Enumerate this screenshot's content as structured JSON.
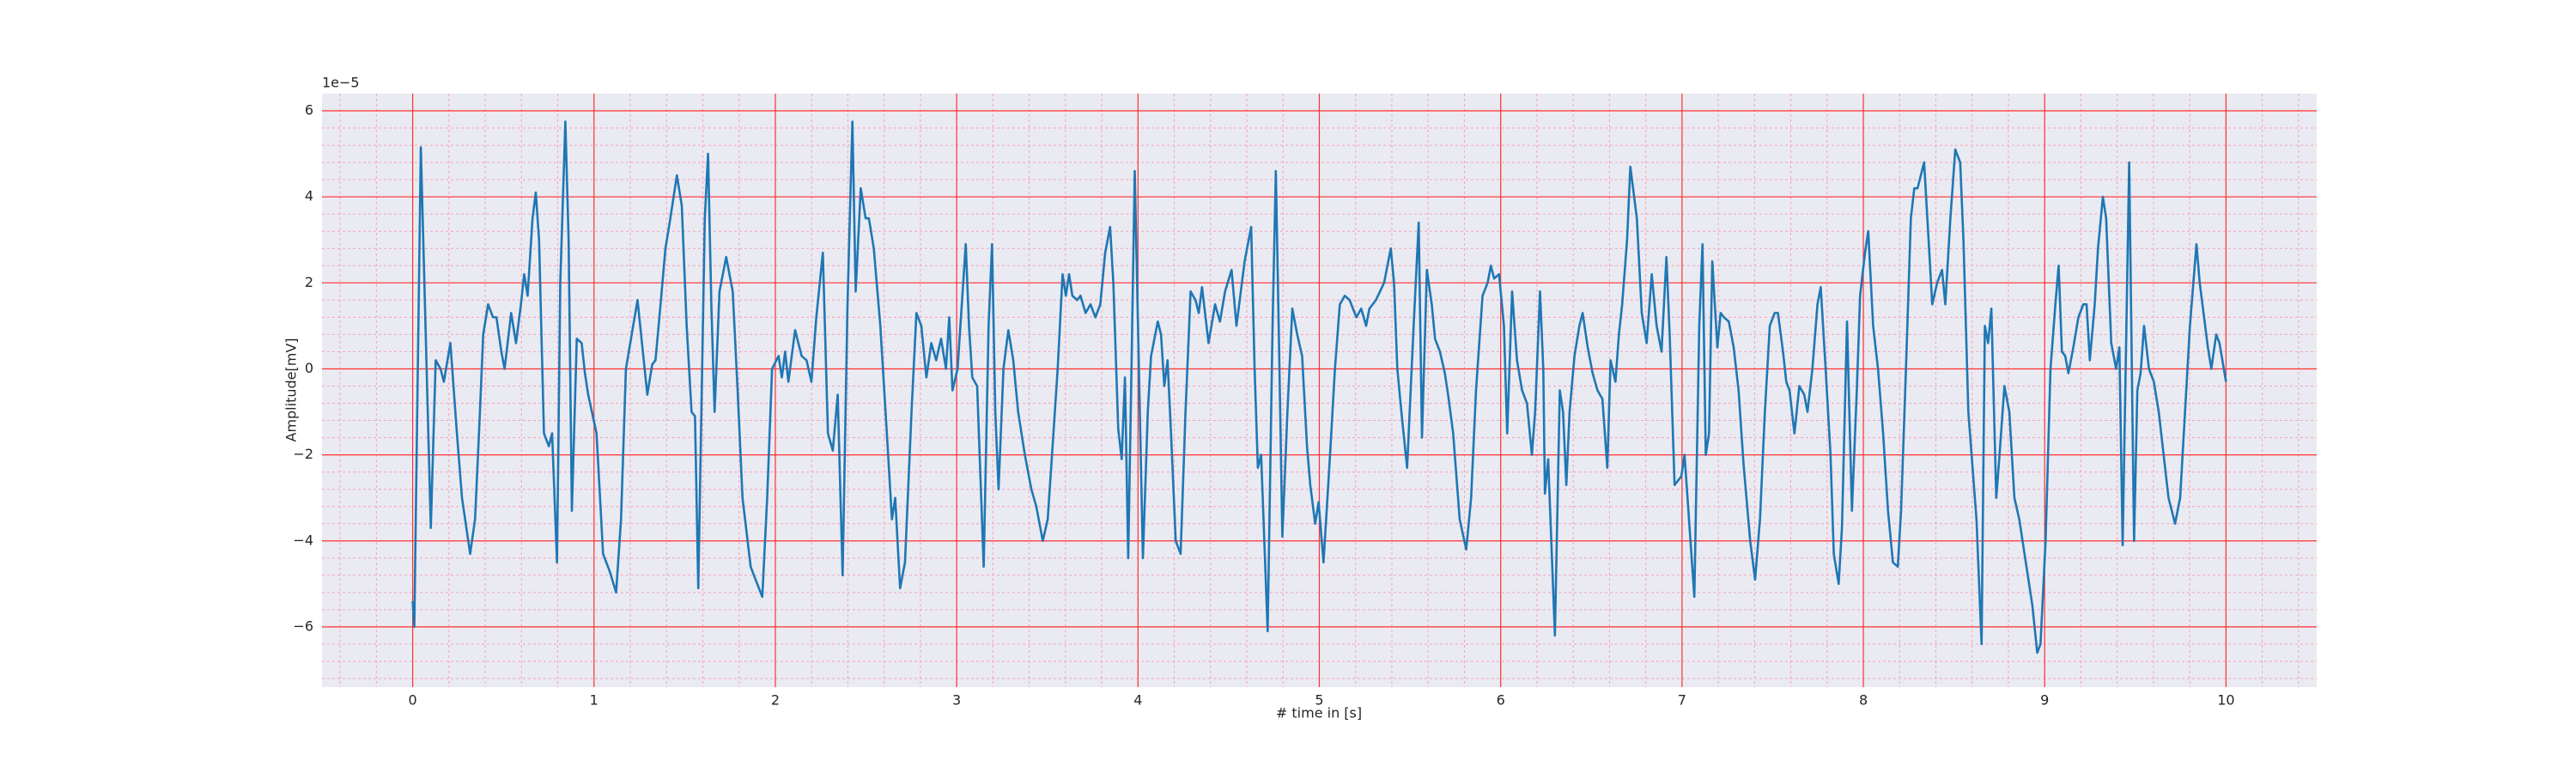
{
  "chart_data": {
    "type": "line",
    "xlabel": "# time in [s]",
    "ylabel": "Amplitude[mV]",
    "y_offset_label": "1e−5",
    "color": "#1f77b4",
    "grid": true,
    "xlim": [
      -0.5,
      10.5
    ],
    "ylim": [
      -7.4,
      6.4
    ],
    "xticks": [
      0,
      1,
      2,
      3,
      4,
      5,
      6,
      7,
      8,
      9,
      10
    ],
    "yticks": [
      {
        "value": -6,
        "label": "−6"
      },
      {
        "value": -4,
        "label": "−4"
      },
      {
        "value": -2,
        "label": "−2"
      },
      0,
      2,
      4,
      6
    ],
    "x_minor_ticks": [
      -0.4,
      -0.2,
      0.2,
      0.4,
      0.6,
      0.8,
      1.2,
      1.4,
      1.6,
      1.8,
      2.2,
      2.4,
      2.6,
      2.8,
      3.2,
      3.4,
      3.6,
      3.8,
      4.2,
      4.4,
      4.6,
      4.8,
      5.2,
      5.4,
      5.6,
      5.8,
      6.2,
      6.4,
      6.6,
      6.8,
      7.2,
      7.4,
      7.6,
      7.8,
      8.2,
      8.4,
      8.6,
      8.8,
      9.2,
      9.4,
      9.6,
      9.8,
      10.2,
      10.4
    ],
    "y_minor_ticks": [
      -7.2,
      -6.8,
      -6.4,
      -5.6,
      -5.2,
      -4.8,
      -4.4,
      -3.6,
      -3.2,
      -2.8,
      -2.4,
      -1.6,
      -1.2,
      -0.8,
      -0.4,
      0.4,
      0.8,
      1.2,
      1.6,
      2.4,
      2.8,
      3.2,
      3.6,
      4.4,
      4.8,
      5.2,
      5.6
    ],
    "x": [
      0.0,
      0.009,
      0.045,
      0.1,
      0.127,
      0.154,
      0.172,
      0.208,
      0.244,
      0.272,
      0.317,
      0.344,
      0.371,
      0.389,
      0.416,
      0.443,
      0.462,
      0.489,
      0.507,
      0.543,
      0.57,
      0.597,
      0.615,
      0.634,
      0.661,
      0.679,
      0.697,
      0.724,
      0.751,
      0.769,
      0.796,
      0.814,
      0.842,
      0.86,
      0.878,
      0.905,
      0.932,
      0.95,
      0.968,
      1.014,
      1.05,
      1.086,
      1.122,
      1.149,
      1.176,
      1.204,
      1.24,
      1.267,
      1.294,
      1.321,
      1.339,
      1.367,
      1.394,
      1.421,
      1.457,
      1.484,
      1.511,
      1.538,
      1.557,
      1.575,
      1.611,
      1.629,
      1.647,
      1.665,
      1.692,
      1.729,
      1.765,
      1.792,
      1.819,
      1.864,
      1.891,
      1.928,
      1.955,
      1.982,
      2.018,
      2.036,
      2.054,
      2.072,
      2.109,
      2.145,
      2.172,
      2.199,
      2.226,
      2.262,
      2.29,
      2.317,
      2.344,
      2.371,
      2.398,
      2.425,
      2.443,
      2.471,
      2.498,
      2.516,
      2.543,
      2.579,
      2.615,
      2.643,
      2.661,
      2.688,
      2.715,
      2.751,
      2.778,
      2.805,
      2.833,
      2.86,
      2.887,
      2.914,
      2.941,
      2.959,
      2.977,
      3.005,
      3.05,
      3.068,
      3.086,
      3.113,
      3.149,
      3.176,
      3.195,
      3.213,
      3.231,
      3.258,
      3.285,
      3.312,
      3.339,
      3.376,
      3.412,
      3.439,
      3.475,
      3.502,
      3.529,
      3.557,
      3.584,
      3.602,
      3.62,
      3.638,
      3.665,
      3.683,
      3.711,
      3.738,
      3.765,
      3.792,
      3.819,
      3.846,
      3.864,
      3.891,
      3.91,
      3.928,
      3.946,
      3.964,
      3.982,
      4.0,
      4.027,
      4.054,
      4.072,
      4.109,
      4.127,
      4.145,
      4.163,
      4.181,
      4.208,
      4.235,
      4.262,
      4.29,
      4.317,
      4.335,
      4.353,
      4.389,
      4.425,
      4.452,
      4.48,
      4.516,
      4.543,
      4.588,
      4.624,
      4.643,
      4.661,
      4.679,
      4.715,
      4.742,
      4.76,
      4.778,
      4.796,
      4.824,
      4.851,
      4.878,
      4.905,
      4.932,
      4.95,
      4.977,
      4.996,
      5.023,
      5.059,
      5.086,
      5.113,
      5.14,
      5.167,
      5.204,
      5.231,
      5.258,
      5.276,
      5.312,
      5.357,
      5.394,
      5.412,
      5.43,
      5.457,
      5.484,
      5.52,
      5.548,
      5.566,
      5.593,
      5.62,
      5.638,
      5.665,
      5.692,
      5.71,
      5.738,
      5.774,
      5.81,
      5.837,
      5.864,
      5.9,
      5.928,
      5.946,
      5.964,
      5.991,
      6.018,
      6.036,
      6.063,
      6.09,
      6.118,
      6.145,
      6.172,
      6.19,
      6.217,
      6.235,
      6.244,
      6.262,
      6.299,
      6.326,
      6.344,
      6.362,
      6.38,
      6.407,
      6.434,
      6.452,
      6.48,
      6.507,
      6.534,
      6.561,
      6.588,
      6.606,
      6.633,
      6.652,
      6.67,
      6.697,
      6.715,
      6.751,
      6.778,
      6.805,
      6.833,
      6.86,
      6.887,
      6.914,
      6.932,
      6.959,
      6.996,
      7.014,
      7.068,
      7.095,
      7.113,
      7.131,
      7.149,
      7.167,
      7.195,
      7.213,
      7.231,
      7.258,
      7.285,
      7.312,
      7.339,
      7.376,
      7.403,
      7.43,
      7.457,
      7.484,
      7.511,
      7.529,
      7.557,
      7.575,
      7.593,
      7.62,
      7.647,
      7.674,
      7.692,
      7.719,
      7.747,
      7.765,
      7.792,
      7.819,
      7.837,
      7.864,
      7.882,
      7.91,
      7.937,
      7.964,
      7.982,
      8.009,
      8.027,
      8.054,
      8.081,
      8.109,
      8.136,
      8.163,
      8.19,
      8.208,
      8.235,
      8.262,
      8.281,
      8.299,
      8.317,
      8.335,
      8.353,
      8.38,
      8.407,
      8.434,
      8.452,
      8.48,
      8.507,
      8.534,
      8.552,
      8.579,
      8.597,
      8.624,
      8.652,
      8.67,
      8.688,
      8.706,
      8.733,
      8.751,
      8.778,
      8.805,
      8.833,
      8.86,
      8.896,
      8.932,
      8.959,
      8.977,
      9.005,
      9.032,
      9.059,
      9.077,
      9.095,
      9.113,
      9.131,
      9.158,
      9.186,
      9.213,
      9.231,
      9.249,
      9.276,
      9.294,
      9.321,
      9.339,
      9.367,
      9.394,
      9.412,
      9.43,
      9.466,
      9.493,
      9.511,
      9.529,
      9.548,
      9.575,
      9.602,
      9.629,
      9.656,
      9.683,
      9.719,
      9.747,
      9.774,
      9.801,
      9.837,
      9.855,
      9.873,
      9.9,
      9.919,
      9.946,
      9.964,
      10.0
    ],
    "values": [
      -5.4,
      -6.0,
      5.15,
      -3.7,
      0.2,
      0,
      -0.3,
      0.6,
      -1.5,
      -3,
      -4.3,
      -3.5,
      -1,
      0.8,
      1.5,
      1.2,
      1.2,
      0.4,
      0,
      1.3,
      0.6,
      1.5,
      2.2,
      1.7,
      3.5,
      4.1,
      3.0,
      -1.5,
      -1.8,
      -1.5,
      -4.5,
      2,
      5.75,
      3,
      -3.3,
      0.7,
      0.6,
      -0.1,
      -0.6,
      -1.5,
      -4.3,
      -4.7,
      -5.2,
      -3.5,
      0,
      0.7,
      1.6,
      0.5,
      -0.6,
      0.1,
      0.2,
      1.5,
      2.8,
      3.5,
      4.5,
      3.8,
      1,
      -1,
      -1.1,
      -5.1,
      3.5,
      5.0,
      1.5,
      -1,
      1.8,
      2.6,
      1.8,
      -0.5,
      -3,
      -4.6,
      -4.9,
      -5.3,
      -3,
      0,
      0.3,
      -0.2,
      0.4,
      -0.3,
      0.9,
      0.3,
      0.2,
      -0.3,
      1.2,
      2.7,
      -1.5,
      -1.9,
      -0.6,
      -4.8,
      1.5,
      5.75,
      1.8,
      4.2,
      3.5,
      3.5,
      2.8,
      1,
      -1.5,
      -3.5,
      -3,
      -5.1,
      -4.5,
      -1,
      1.3,
      1,
      -0.2,
      0.6,
      0.2,
      0.7,
      0,
      1.2,
      -0.5,
      0,
      2.9,
      1,
      -0.2,
      -0.4,
      -4.6,
      1,
      2.9,
      -1,
      -2.8,
      0,
      0.9,
      0.2,
      -1,
      -2,
      -2.8,
      -3.2,
      -4,
      -3.5,
      -1.8,
      0,
      2.2,
      1.7,
      2.2,
      1.7,
      1.6,
      1.7,
      1.3,
      1.5,
      1.2,
      1.5,
      2.7,
      3.3,
      2,
      -1.4,
      -2.1,
      -0.2,
      -4.4,
      0,
      4.6,
      1,
      -4.4,
      -1,
      0.3,
      1.1,
      0.8,
      -0.4,
      0.2,
      -1.4,
      -4,
      -4.3,
      -1,
      1.8,
      1.6,
      1.3,
      1.9,
      0.6,
      1.5,
      1.1,
      1.8,
      2.3,
      1,
      2.5,
      3.3,
      0,
      -2.3,
      -2,
      -6.1,
      1,
      4.6,
      0.5,
      -3.9,
      -1,
      1.4,
      0.8,
      0.3,
      -1.8,
      -2.7,
      -3.6,
      -3.1,
      -4.5,
      -2,
      0,
      1.5,
      1.7,
      1.6,
      1.2,
      1.4,
      1,
      1.4,
      1.6,
      2,
      2.8,
      2,
      0,
      -1.2,
      -2.3,
      1,
      3.4,
      -1.6,
      2.3,
      1.5,
      0.7,
      0.4,
      -0.1,
      -0.6,
      -1.5,
      -3.5,
      -4.2,
      -3,
      -0.5,
      1.7,
      2,
      2.4,
      2.1,
      2.2,
      1,
      -1.5,
      1.8,
      0.2,
      -0.5,
      -0.8,
      -2,
      -1,
      1.8,
      0,
      -2.9,
      -2.1,
      -6.2,
      -0.5,
      -1,
      -2.7,
      -1,
      0.3,
      1,
      1.3,
      0.5,
      -0.1,
      -0.5,
      -0.7,
      -2.3,
      0.2,
      -0.3,
      0.8,
      1.5,
      3,
      4.7,
      3.5,
      1.3,
      0.6,
      2.2,
      1,
      0.4,
      2.6,
      0.8,
      -2.7,
      -2.5,
      -2,
      -5.3,
      1,
      2.9,
      -2,
      -1.5,
      2.5,
      0.5,
      1.3,
      1.2,
      1.1,
      0.5,
      -0.5,
      -2.2,
      -4,
      -4.9,
      -3.5,
      -1,
      1,
      1.3,
      1.3,
      0.4,
      -0.3,
      -0.5,
      -1.5,
      -0.4,
      -0.6,
      -1,
      0,
      1.5,
      1.9,
      0,
      -2,
      -4.3,
      -5.0,
      -3.7,
      1.1,
      -3.3,
      -0.5,
      1.7,
      2.7,
      3.2,
      1,
      0,
      -1.5,
      -3.3,
      -4.5,
      -4.6,
      -3.3,
      0,
      3.5,
      4.2,
      4.2,
      4.5,
      4.8,
      3.5,
      1.5,
      2,
      2.3,
      1.5,
      3.5,
      5.1,
      4.8,
      3,
      -1,
      -2,
      -3.5,
      -6.4,
      1,
      0.6,
      1.4,
      -3,
      -2,
      -0.4,
      -1,
      -3,
      -3.5,
      -4.5,
      -5.5,
      -6.6,
      -6.4,
      -4,
      0,
      1.5,
      2.4,
      0.4,
      0.3,
      -0.1,
      0.5,
      1.2,
      1.5,
      1.5,
      0.2,
      1.5,
      2.8,
      4,
      3.5,
      0.6,
      0,
      0.5,
      -4.1,
      4.8,
      -4,
      -0.5,
      -0.1,
      1,
      0,
      -0.3,
      -1,
      -2,
      -3,
      -3.6,
      -3,
      -1,
      1,
      2.9,
      2,
      1.4,
      0.5,
      0,
      0.8,
      0.6,
      -0.3
    ]
  }
}
